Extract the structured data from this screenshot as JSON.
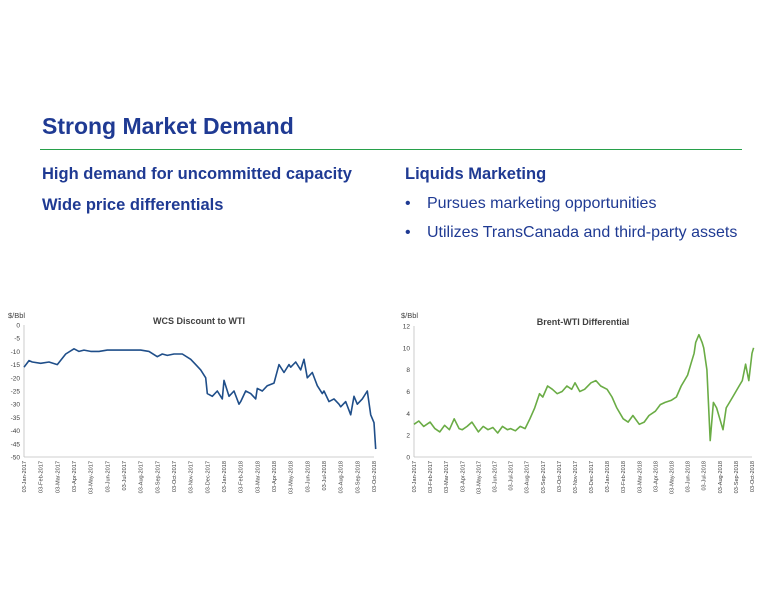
{
  "slide": {
    "title": "Strong Market Demand",
    "left_points": [
      "High demand for uncommitted capacity",
      "Wide price differentials"
    ],
    "right_heading": "Liquids Marketing",
    "right_bullets": [
      "Pursues marketing opportunities",
      "Utilizes TransCanada and third-party assets"
    ],
    "bullet_glyph": "•"
  },
  "colors": {
    "title": "#1f3a93",
    "rule": "#27a04a",
    "wcs_line": "#1f4e89",
    "brent_line": "#6aac45"
  },
  "chart_data": [
    {
      "type": "line",
      "title": "WCS Discount to WTI",
      "ylabel": "$/Bbl",
      "xlabel": "",
      "ylim": [
        -50,
        0
      ],
      "yticks": [
        0,
        -5,
        -10,
        -15,
        -20,
        -25,
        -30,
        -35,
        -40,
        -45,
        -50
      ],
      "grid": false,
      "legend": "none",
      "xlabels": [
        "03-Jan-2017",
        "03-Feb-2017",
        "03-Mar-2017",
        "03-Apr-2017",
        "03-May-2017",
        "03-Jun-2017",
        "03-Jul-2017",
        "03-Aug-2017",
        "03-Sep-2017",
        "03-Oct-2017",
        "03-Nov-2017",
        "03-Dec-2017",
        "03-Jan-2018",
        "03-Feb-2018",
        "03-Mar-2018",
        "03-Apr-2018",
        "03-May-2018",
        "03-Jun-2018",
        "03-Jul-2018",
        "03-Aug-2018",
        "03-Sep-2018",
        "03-Oct-2018"
      ],
      "series": [
        {
          "x": [
            0,
            0.3,
            0.5,
            1,
            1.5,
            2,
            2.5,
            3,
            3.3,
            3.6,
            4,
            4.5,
            5,
            5.5,
            6,
            6.5,
            7,
            7.5,
            8,
            8.3,
            8.6,
            9,
            9.5,
            10,
            10.3,
            10.6,
            10.9,
            11,
            11.3,
            11.6,
            11.9,
            12,
            12.3,
            12.6,
            12.9,
            13,
            13.3,
            13.6,
            13.9,
            14,
            14.3,
            14.6,
            15,
            15.3,
            15.6,
            15.9,
            16,
            16.3,
            16.6,
            16.8,
            17,
            17.3,
            17.6,
            17.9,
            18,
            18.3,
            18.6,
            18.9,
            19,
            19.3,
            19.6,
            19.8,
            20,
            20.3,
            20.6,
            20.8,
            21,
            21.1
          ],
          "values": [
            -16,
            -13.5,
            -14,
            -14.5,
            -14,
            -15,
            -11,
            -9,
            -10,
            -9.5,
            -10,
            -10,
            -9.5,
            -9.5,
            -9.5,
            -9.5,
            -9.5,
            -10,
            -12,
            -11,
            -11.5,
            -11,
            -11,
            -13,
            -15,
            -17,
            -20,
            -26,
            -27,
            -25,
            -28,
            -21,
            -27,
            -25,
            -30,
            -29,
            -25,
            -26,
            -28,
            -24,
            -25,
            -23,
            -22,
            -15,
            -18,
            -15,
            -16,
            -14,
            -17,
            -13,
            -20,
            -18,
            -23,
            -26,
            -25,
            -29,
            -28,
            -30,
            -31,
            -29,
            -34,
            -27,
            -30,
            -28,
            -25,
            -34,
            -37,
            -47
          ]
        }
      ]
    },
    {
      "type": "line",
      "title": "Brent-WTI Differential",
      "ylabel": "$/Bbl",
      "xlabel": "",
      "ylim": [
        0,
        12
      ],
      "yticks": [
        0,
        2,
        4,
        6,
        8,
        10,
        12
      ],
      "grid": false,
      "legend": "none",
      "xlabels": [
        "03-Jan-2017",
        "03-Feb-2017",
        "03-Mar-2017",
        "03-Apr-2017",
        "03-May-2017",
        "03-Jun-2017",
        "03-Jul-2017",
        "03-Aug-2017",
        "03-Sep-2017",
        "03-Oct-2017",
        "03-Nov-2017",
        "03-Dec-2017",
        "03-Jan-2018",
        "03-Feb-2018",
        "03-Mar-2018",
        "03-Apr-2018",
        "03-May-2018",
        "03-Jun-2018",
        "03-Jul-2018",
        "03-Aug-2018",
        "03-Sep-2018",
        "03-Oct-2018"
      ],
      "series": [
        {
          "x": [
            0,
            0.3,
            0.6,
            1,
            1.3,
            1.6,
            1.9,
            2.2,
            2.5,
            2.8,
            3,
            3.3,
            3.6,
            4,
            4.3,
            4.6,
            4.9,
            5.2,
            5.5,
            5.8,
            6,
            6.3,
            6.6,
            6.9,
            7.2,
            7.5,
            7.8,
            8,
            8.3,
            8.6,
            8.9,
            9.2,
            9.5,
            9.8,
            10,
            10.3,
            10.6,
            11,
            11.3,
            11.6,
            12,
            12.3,
            12.6,
            13,
            13.3,
            13.6,
            14,
            14.3,
            14.6,
            15,
            15.3,
            15.6,
            16,
            16.3,
            16.6,
            16.8,
            17,
            17.2,
            17.4,
            17.5,
            17.7,
            17.9,
            18,
            18.2,
            18.4,
            18.6,
            18.8,
            19,
            19.2,
            19.4,
            19.6,
            19.8,
            20,
            20.2,
            20.4,
            20.6,
            20.8,
            21,
            21.1
          ],
          "values": [
            3,
            3.3,
            2.8,
            3.2,
            2.6,
            2.3,
            2.9,
            2.5,
            3.5,
            2.6,
            2.5,
            2.8,
            3.2,
            2.3,
            2.8,
            2.5,
            2.7,
            2.2,
            2.8,
            2.5,
            2.6,
            2.4,
            2.8,
            2.6,
            3.5,
            4.5,
            5.8,
            5.5,
            6.5,
            6.2,
            5.8,
            6,
            6.5,
            6.2,
            6.8,
            6,
            6.2,
            6.8,
            7,
            6.5,
            6.2,
            5.5,
            4.5,
            3.5,
            3.2,
            3.8,
            3,
            3.2,
            3.8,
            4.2,
            4.8,
            5,
            5.2,
            5.5,
            6.5,
            7,
            7.5,
            8.5,
            9.5,
            10.5,
            11.2,
            10.5,
            10,
            8,
            1.5,
            5,
            4.5,
            3.5,
            2.5,
            4.5,
            5,
            5.5,
            6,
            6.5,
            7,
            8.5,
            7,
            9.5,
            10
          ]
        }
      ]
    }
  ]
}
